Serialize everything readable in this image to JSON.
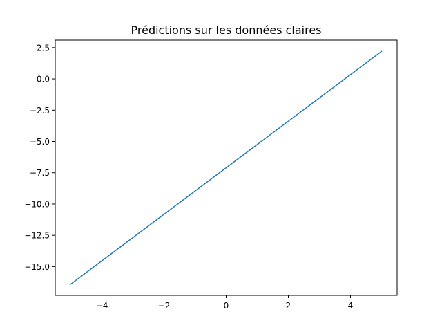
{
  "chart_data": {
    "type": "line",
    "title": "Prédictions sur les données claires",
    "xlabel": "",
    "ylabel": "",
    "xlim": [
      -5.5,
      5.5
    ],
    "ylim": [
      -17.3,
      3.1
    ],
    "x_ticks": [
      -4,
      -2,
      0,
      2,
      4
    ],
    "x_tick_labels": [
      "−4",
      "−2",
      "0",
      "2",
      "4"
    ],
    "y_ticks": [
      2.5,
      0.0,
      -2.5,
      -5.0,
      -7.5,
      -10.0,
      -12.5,
      -15.0
    ],
    "y_tick_labels": [
      "2.5",
      "0.0",
      "−2.5",
      "−5.0",
      "−7.5",
      "−10.0",
      "−12.5",
      "−15.0"
    ],
    "grid": false,
    "series": [
      {
        "color": "#1f77b4",
        "x": [
          -5,
          5
        ],
        "y": [
          -16.4,
          2.2
        ]
      }
    ]
  }
}
